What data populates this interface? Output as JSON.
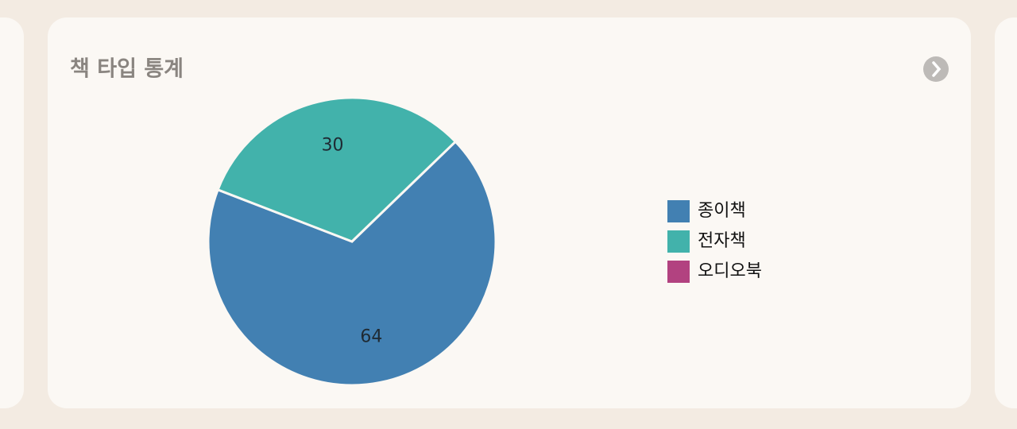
{
  "header": {
    "title": "책 타입 통계"
  },
  "chart_data": {
    "type": "pie",
    "categories": [
      "종이책",
      "전자책",
      "오디오북"
    ],
    "values": [
      64,
      30,
      0
    ],
    "value_labels": [
      "64",
      "30",
      null
    ],
    "colors": [
      "#4280b2",
      "#42b2ab",
      "#b24280"
    ],
    "legend": "right"
  }
}
